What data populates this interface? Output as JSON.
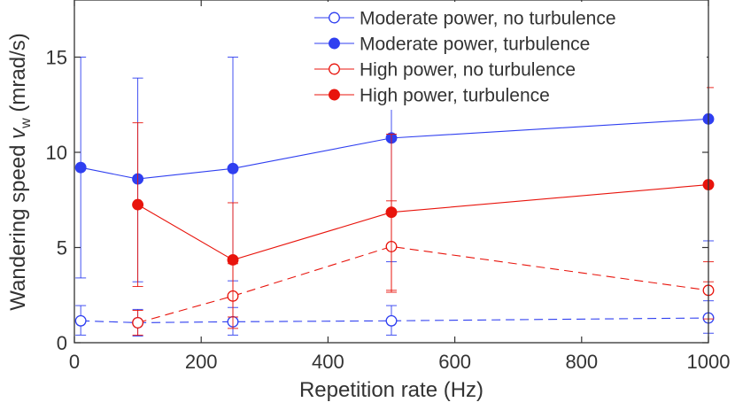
{
  "chart_data": {
    "type": "line",
    "title": "",
    "xlabel": "Repetition rate (Hz)",
    "ylabel": {
      "main": "Wandering speed ",
      "symbol": "v",
      "subscript": "w",
      "units": " (mrad/s)"
    },
    "xlim": [
      0,
      1000
    ],
    "ylim": [
      0,
      18
    ],
    "xticks": [
      0,
      200,
      400,
      600,
      800,
      1000
    ],
    "yticks": [
      0,
      5,
      10,
      15
    ],
    "xtick_labels": [
      "0",
      "200",
      "400",
      "600",
      "800",
      "1000"
    ],
    "ytick_labels": [
      "0",
      "5",
      "10",
      "15"
    ],
    "grid": false,
    "legend_position": "top-right",
    "series": [
      {
        "name": "Moderate power, no turbulence",
        "color": "#2f3ff0",
        "filled": false,
        "line_style": "dashed",
        "x": [
          10,
          100,
          250,
          500,
          1000
        ],
        "y": [
          1.15,
          1.05,
          1.1,
          1.15,
          1.3
        ],
        "err_low": [
          0.75,
          0.7,
          0.7,
          0.75,
          0.8
        ],
        "err_high": [
          0.8,
          0.7,
          0.75,
          0.8,
          0.9
        ]
      },
      {
        "name": "Moderate power, turbulence",
        "color": "#2f3ff0",
        "filled": true,
        "line_style": "solid",
        "x": [
          10,
          100,
          250,
          500,
          1000
        ],
        "y": [
          9.2,
          8.6,
          9.15,
          10.75,
          11.75
        ],
        "err_low": [
          5.8,
          5.4,
          5.9,
          6.5,
          6.4
        ],
        "err_high": [
          5.8,
          5.3,
          5.85,
          6.5,
          6.4
        ]
      },
      {
        "name": "High power, no turbulence",
        "color": "#e8140c",
        "filled": false,
        "line_style": "dashed",
        "x": [
          100,
          250,
          500,
          1000
        ],
        "y": [
          1.05,
          2.45,
          5.05,
          2.75
        ],
        "err_low": [
          0.65,
          1.7,
          2.4,
          1.5
        ],
        "err_high": [
          0.65,
          1.7,
          2.4,
          1.5
        ]
      },
      {
        "name": "High power, turbulence",
        "color": "#e8140c",
        "filled": true,
        "line_style": "solid",
        "x": [
          100,
          250,
          500,
          1000
        ],
        "y": [
          7.25,
          4.35,
          6.85,
          8.3
        ],
        "err_low": [
          4.3,
          3.0,
          4.1,
          5.1
        ],
        "err_high": [
          4.3,
          3.0,
          4.1,
          5.1
        ]
      }
    ]
  }
}
